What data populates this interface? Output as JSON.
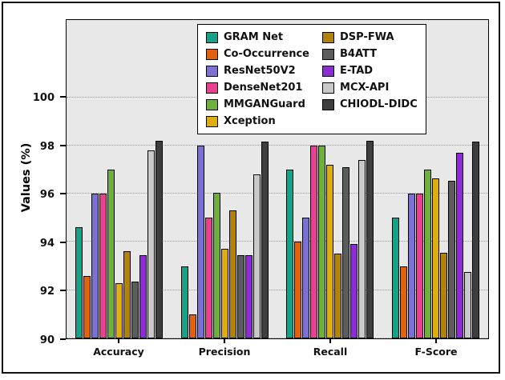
{
  "chart_data": {
    "type": "bar",
    "title": "",
    "xlabel": "",
    "ylabel": "Values (%)",
    "ylim": [
      90,
      100
    ],
    "axis": {
      "ymin": 90,
      "ymax": 103.2,
      "yticks": [
        90,
        92,
        94,
        96,
        98,
        100
      ]
    },
    "grid": true,
    "legend_position": "upper center",
    "legend_columns": 2,
    "legend_split": 6,
    "categories": [
      "Accuracy",
      "Precision",
      "Recall",
      "F-Score"
    ],
    "series": [
      {
        "name": "GRAM Net",
        "color": "#17a287",
        "values": [
          94.6,
          93.0,
          97.0,
          95.0
        ]
      },
      {
        "name": "Co-Occurrence",
        "color": "#e0620f",
        "values": [
          92.6,
          91.0,
          94.0,
          93.0
        ]
      },
      {
        "name": "ResNet50V2",
        "color": "#7d70d4",
        "values": [
          96.0,
          98.0,
          95.0,
          96.0
        ]
      },
      {
        "name": "DenseNet201",
        "color": "#e8418f",
        "values": [
          96.0,
          95.0,
          98.0,
          96.0
        ]
      },
      {
        "name": "MMGANGuard",
        "color": "#6fb03c",
        "values": [
          97.0,
          96.05,
          98.0,
          97.0
        ]
      },
      {
        "name": "Xception",
        "color": "#dfad10",
        "values": [
          92.3,
          93.7,
          97.2,
          96.65
        ]
      },
      {
        "name": "DSP-FWA",
        "color": "#b1830d",
        "values": [
          93.6,
          95.3,
          93.5,
          93.55
        ]
      },
      {
        "name": "B4ATT",
        "color": "#5c5c5c",
        "values": [
          92.35,
          93.45,
          97.1,
          96.55
        ]
      },
      {
        "name": "E-TAD",
        "color": "#8d2bd4",
        "values": [
          93.45,
          93.45,
          93.9,
          97.7
        ]
      },
      {
        "name": "MCX-API",
        "color": "#c9c9c9",
        "values": [
          97.8,
          96.8,
          97.4,
          92.75
        ]
      },
      {
        "name": "CHIODL-DIDC",
        "color": "#3e3e3e",
        "values": [
          98.2,
          98.15,
          98.2,
          98.15
        ]
      }
    ]
  }
}
